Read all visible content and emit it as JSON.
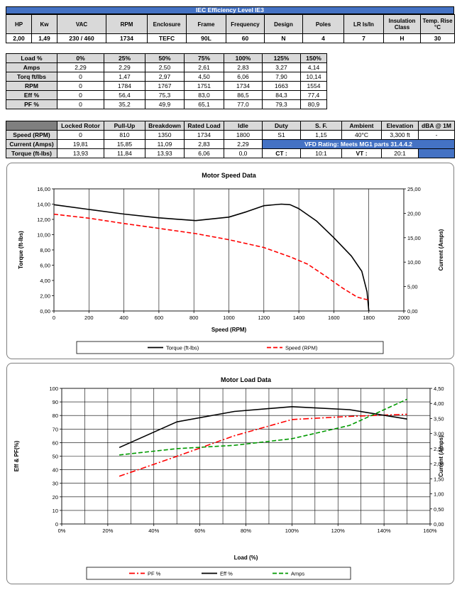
{
  "spec_table": {
    "title": "IEC Efficiency Level IE3",
    "headers": [
      "HP",
      "Kw",
      "VAC",
      "RPM",
      "Enclosure",
      "Frame",
      "Frequency",
      "Design",
      "Poles",
      "LR Is/In",
      "Insulation Class",
      "Temp. Rise °C"
    ],
    "values": [
      "2,00",
      "1,49",
      "230 / 460",
      "1734",
      "TEFC",
      "90L",
      "60",
      "N",
      "4",
      "7",
      "H",
      "30"
    ]
  },
  "load_table": {
    "headers": [
      "Load %",
      "0%",
      "25%",
      "50%",
      "75%",
      "100%",
      "125%",
      "150%"
    ],
    "rows": [
      {
        "label": "Amps",
        "values": [
          "2,29",
          "2,29",
          "2,50",
          "2,61",
          "2,83",
          "3,27",
          "4,14"
        ]
      },
      {
        "label": "Torq ft/lbs",
        "values": [
          "0",
          "1,47",
          "2,97",
          "4,50",
          "6,06",
          "7,90",
          "10,14"
        ]
      },
      {
        "label": "RPM",
        "values": [
          "0",
          "1784",
          "1767",
          "1751",
          "1734",
          "1663",
          "1554"
        ]
      },
      {
        "label": "Eff %",
        "values": [
          "0",
          "56,4",
          "75,3",
          "83,0",
          "86,5",
          "84,3",
          "77,4"
        ]
      },
      {
        "label": "PF %",
        "values": [
          "0",
          "35,2",
          "49,9",
          "65,1",
          "77,0",
          "79,3",
          "80,9"
        ]
      }
    ]
  },
  "perf_table": {
    "headers": [
      "",
      "Locked Rotor",
      "Pull-Up",
      "Breakdown",
      "Rated Load",
      "Idle",
      "Duty",
      "S. F.",
      "Ambient",
      "Elevation",
      "dBA @ 1M"
    ],
    "rows": [
      {
        "label": "Speed (RPM)",
        "values": [
          "0",
          "810",
          "1350",
          "1734",
          "1800"
        ]
      },
      {
        "label": "Current (Amps)",
        "values": [
          "19,81",
          "15,85",
          "11,09",
          "2,83",
          "2,29"
        ]
      },
      {
        "label": "Torque (ft-lbs)",
        "values": [
          "13,93",
          "11,84",
          "13,93",
          "6,06",
          "0,0"
        ]
      }
    ],
    "duty_values": [
      "S1",
      "1,15",
      "40°C",
      "3,300 ft",
      "-"
    ],
    "vfd_rating": "VFD Rating: Meets MG1 parts 31.4.4.2",
    "ct_label": "CT :",
    "ct_value": "10:1",
    "vt_label": "VT :",
    "vt_value": "20:1"
  },
  "chart_data": [
    {
      "type": "line",
      "title": "Motor Speed Data",
      "xlabel": "Speed (RPM)",
      "ylabel": "Torque (ft-lbs)",
      "y2label": "Current (Amps)",
      "xlim": [
        0,
        2000
      ],
      "ylim": [
        0,
        16
      ],
      "y2lim": [
        0,
        25
      ],
      "xticks": [
        "0",
        "200",
        "400",
        "600",
        "800",
        "1000",
        "1200",
        "1400",
        "1600",
        "1800",
        "2000"
      ],
      "yticks": [
        "0,00",
        "2,00",
        "4,00",
        "6,00",
        "8,00",
        "10,00",
        "12,00",
        "14,00",
        "16,00"
      ],
      "y2ticks": [
        "0,00",
        "5,00",
        "10,00",
        "15,00",
        "20,00",
        "25,00"
      ],
      "grid": "vertical",
      "legend_position": "bottom",
      "series": [
        {
          "name": "Torque (ft-lbs)",
          "axis": "left",
          "color": "#000000",
          "dash": "solid",
          "x": [
            0,
            200,
            400,
            600,
            810,
            1000,
            1100,
            1200,
            1300,
            1350,
            1400,
            1500,
            1600,
            1700,
            1760,
            1790,
            1800
          ],
          "y": [
            13.93,
            13.3,
            12.7,
            12.2,
            11.84,
            12.3,
            13.0,
            13.8,
            14.0,
            13.93,
            13.4,
            11.8,
            9.6,
            7.2,
            5.2,
            2.5,
            0.0
          ]
        },
        {
          "name": "Speed (RPM)",
          "axis": "right",
          "color": "#ff0000",
          "dash": "dashed",
          "x": [
            0,
            200,
            400,
            600,
            810,
            1000,
            1200,
            1350,
            1450,
            1550,
            1650,
            1734,
            1780,
            1800
          ],
          "y": [
            19.81,
            19.0,
            17.9,
            16.9,
            15.85,
            14.6,
            13.0,
            11.09,
            9.6,
            7.2,
            4.7,
            2.83,
            2.4,
            2.29
          ]
        }
      ]
    },
    {
      "type": "line",
      "title": "Motor Load Data",
      "xlabel": "Load (%)",
      "ylabel": "Eff & PF(%)",
      "y2label": "Current (Amps)",
      "xlim": [
        0,
        160
      ],
      "ylim": [
        0,
        100
      ],
      "y2lim": [
        0,
        4.5
      ],
      "xticks": [
        "0%",
        "20%",
        "40%",
        "60%",
        "80%",
        "100%",
        "120%",
        "140%",
        "160%"
      ],
      "yticks": [
        "0",
        "10",
        "20",
        "30",
        "40",
        "50",
        "60",
        "70",
        "80",
        "90",
        "100"
      ],
      "y2ticks": [
        "0,00",
        "0,50",
        "1,00",
        "1,50",
        "2,00",
        "2,50",
        "3,00",
        "3,50",
        "4,00",
        "4,50"
      ],
      "grid": "both",
      "legend_position": "bottom",
      "series": [
        {
          "name": "PF %",
          "axis": "left",
          "color": "#ff0000",
          "dash": "dashdot",
          "x": [
            25,
            50,
            75,
            100,
            125,
            150
          ],
          "y": [
            35.2,
            49.9,
            65.1,
            77.0,
            79.3,
            80.9
          ]
        },
        {
          "name": "Eff %",
          "axis": "left",
          "color": "#000000",
          "dash": "solid",
          "x": [
            25,
            50,
            75,
            100,
            125,
            150
          ],
          "y": [
            56.4,
            75.3,
            83.0,
            86.5,
            84.3,
            77.4
          ]
        },
        {
          "name": "Amps",
          "axis": "right",
          "color": "#009900",
          "dash": "dashed",
          "x": [
            25,
            50,
            75,
            100,
            125,
            150
          ],
          "y": [
            2.29,
            2.5,
            2.61,
            2.83,
            3.27,
            4.14
          ]
        }
      ]
    }
  ]
}
